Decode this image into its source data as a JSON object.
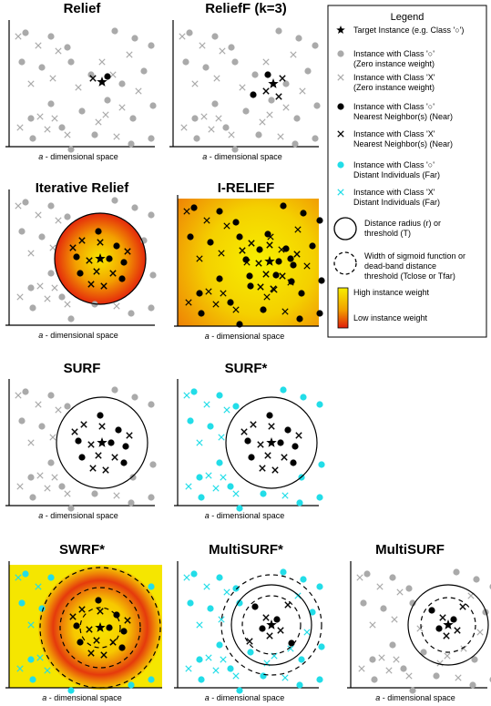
{
  "panels": [
    {
      "title": "Relief",
      "axis_label": "a - dimensional space"
    },
    {
      "title": "ReliefF (k=3)",
      "axis_label": "a - dimensional space"
    },
    {
      "title": "Iterative Relief",
      "axis_label": "a - dimensional space"
    },
    {
      "title": "I-RELIEF",
      "axis_label": "a - dimensional space"
    },
    {
      "title": "SURF",
      "axis_label": "a - dimensional space"
    },
    {
      "title": "SURF*",
      "axis_label": "a - dimensional space"
    },
    {
      "title": "SWRF*",
      "axis_label": "a - dimensional space"
    },
    {
      "title": "MultiSURF*",
      "axis_label": "a - dimensional space"
    },
    {
      "title": "MultiSURF",
      "axis_label": "a - dimensional space"
    }
  ],
  "legend": {
    "title": "Legend",
    "items": [
      {
        "lines": [
          "Target Instance (e.g. Class '○')"
        ]
      },
      {
        "lines": [
          "Instance with Class '○'",
          "(Zero instance weight)"
        ]
      },
      {
        "lines": [
          "Instance with Class 'X'",
          "(Zero instance weight)"
        ]
      },
      {
        "lines": [
          "Instance with Class '○'",
          "Nearest Neighbor(s) (Near)"
        ]
      },
      {
        "lines": [
          "Instance with Class 'X'",
          "Nearest Neighbor(s) (Near)"
        ]
      },
      {
        "lines": [
          "Instance with Class '○'",
          "Distant Individuals (Far)"
        ]
      },
      {
        "lines": [
          "Instance with Class 'X'",
          "Distant Individuals (Far)"
        ]
      },
      {
        "lines": [
          "Distance radius (r) or",
          "threshold (T)"
        ]
      },
      {
        "lines": [
          "Width of sigmoid function or",
          "dead-band distance",
          "threshold (Tclose or Tfar)"
        ]
      },
      {
        "lines": [
          "High instance weight"
        ]
      },
      {
        "lines": [
          "Low instance weight"
        ]
      }
    ]
  },
  "colors": {
    "gray": "#aaaaaa",
    "black": "#000000",
    "cyan": "#22dde8",
    "yellow": "#f5e600",
    "red": "#e8200a"
  }
}
